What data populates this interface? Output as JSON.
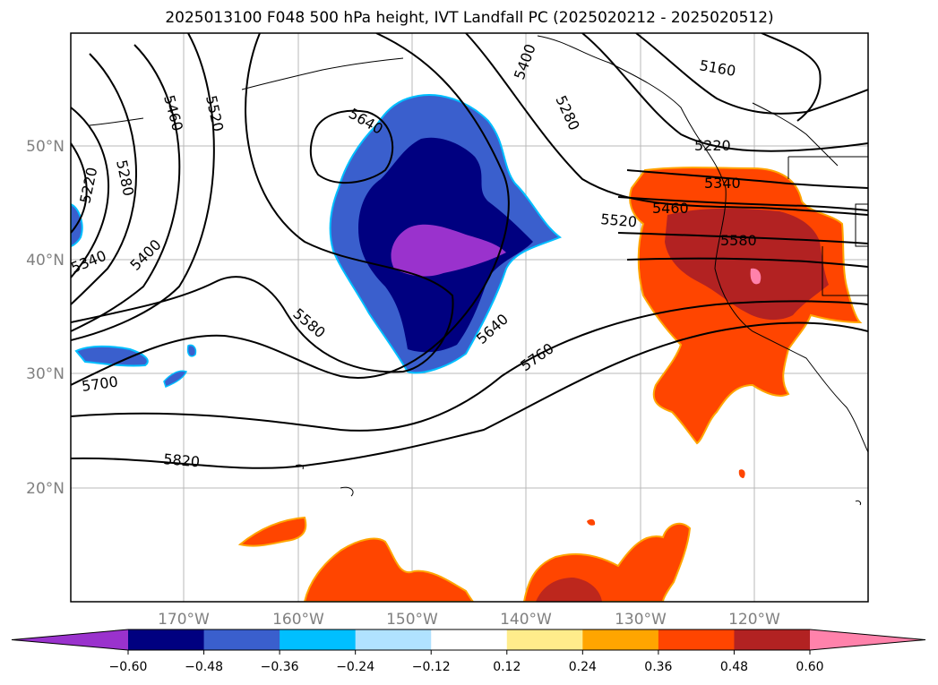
{
  "title": "2025013100 F048 500 hPa height, IVT Landfall PC (2025020212 - 2025020512)",
  "lat_labels": [
    "50°N",
    "40°N",
    "30°N",
    "20°N"
  ],
  "lon_labels": [
    "170°W",
    "160°W",
    "150°W",
    "140°W",
    "130°W",
    "120°W"
  ],
  "colorbar": {
    "ticks": [
      "−0.60",
      "−0.48",
      "−0.36",
      "−0.24",
      "−0.12",
      "0.12",
      "0.24",
      "0.36",
      "0.48",
      "0.60"
    ],
    "colors": [
      "#9a32cd",
      "#000080",
      "#3a5fcd",
      "#00bfff",
      "#b0e2ff",
      "#ffffff",
      "#ffec8b",
      "#ffa500",
      "#ff4500",
      "#b22222",
      "#ff82ab"
    ]
  },
  "contour_labels": [
    "5460",
    "5520",
    "5220",
    "5280",
    "5340",
    "5400",
    "5640",
    "5580",
    "5700",
    "5820",
    "5400",
    "5280",
    "5160",
    "5220",
    "5340",
    "5460",
    "5520",
    "5580",
    "5640",
    "5760"
  ]
}
